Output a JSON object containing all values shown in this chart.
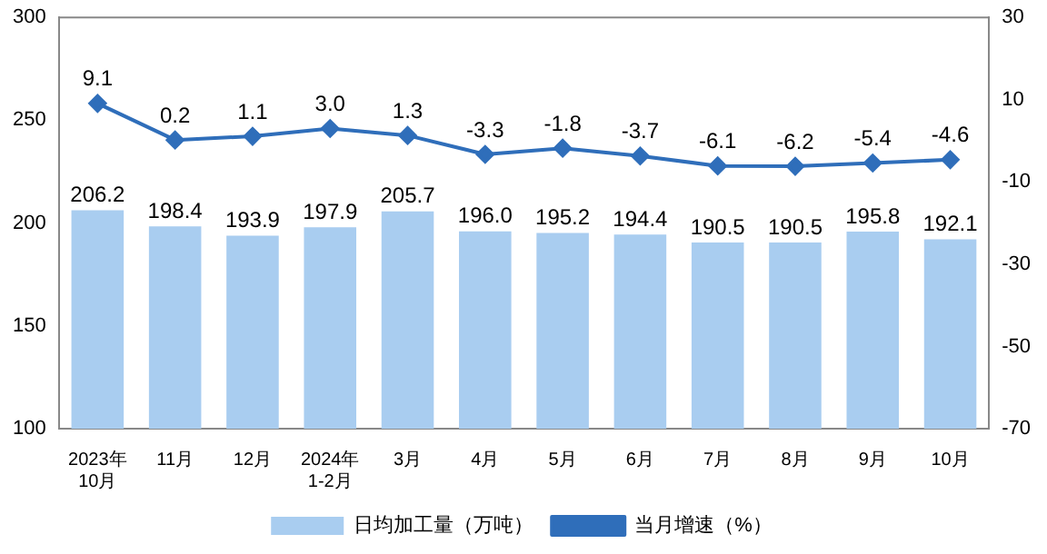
{
  "chart_data": {
    "type": "bar",
    "categories": [
      "2023年\n10月",
      "11月",
      "12月",
      "2024年\n1-2月",
      "3月",
      "4月",
      "5月",
      "6月",
      "7月",
      "8月",
      "9月",
      "10月"
    ],
    "series": [
      {
        "name": "日均加工量（万吨）",
        "color": "#a9cdf0",
        "values": [
          206.2,
          198.4,
          193.9,
          197.9,
          205.7,
          196.0,
          195.2,
          194.4,
          190.5,
          190.5,
          195.8,
          192.1
        ],
        "value_labels": [
          "206.2",
          "198.4",
          "193.9",
          "197.9",
          "205.7",
          "196.0",
          "195.2",
          "194.4",
          "190.5",
          "190.5",
          "195.8",
          "192.1"
        ]
      },
      {
        "name": "当月增速（%）",
        "type": "line",
        "axis": "y2",
        "color": "#2f6eba",
        "values": [
          9.1,
          0.2,
          1.1,
          3.0,
          1.3,
          -3.3,
          -1.8,
          -3.7,
          -6.1,
          -6.2,
          -5.4,
          -4.6
        ],
        "value_labels": [
          "9.1",
          "0.2",
          "1.1",
          "3.0",
          "1.3",
          "-3.3",
          "-1.8",
          "-3.7",
          "-6.1",
          "-6.2",
          "-5.4",
          "-4.6"
        ]
      }
    ],
    "ylim": [
      100,
      300
    ],
    "yticks": [
      100,
      150,
      200,
      250,
      300
    ],
    "y2lim": [
      -70,
      30
    ],
    "y2ticks": [
      -70,
      -50,
      -30,
      -10,
      10,
      30
    ],
    "legend": "bottom",
    "marker": "diamond",
    "grid": false
  }
}
